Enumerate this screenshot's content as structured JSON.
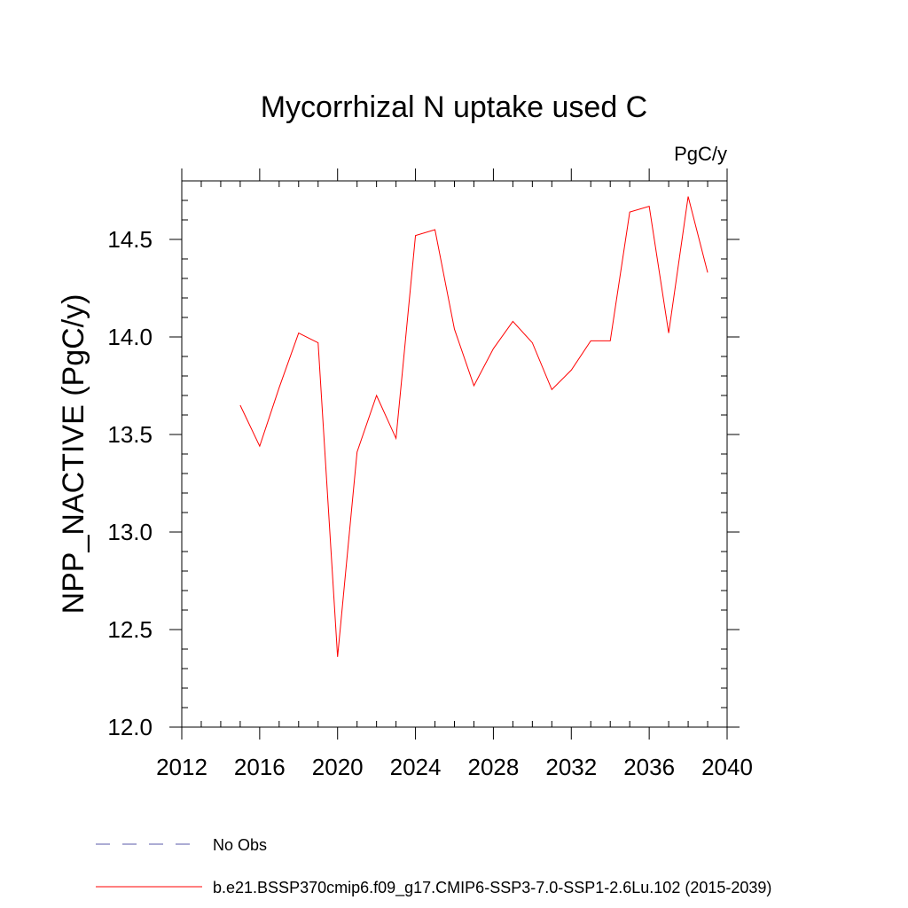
{
  "chart_data": {
    "type": "line",
    "title": "Mycorrhizal N uptake used C",
    "units_label": "PgC/y",
    "ylabel": "NPP_NACTIVE  (PgC/y)",
    "xlabel": "",
    "xlim": [
      2012,
      2040
    ],
    "ylim": [
      12.0,
      14.8
    ],
    "x_ticks": [
      2012,
      2016,
      2020,
      2024,
      2028,
      2032,
      2036,
      2040
    ],
    "y_ticks": [
      12.0,
      12.5,
      13.0,
      13.5,
      14.0,
      14.5
    ],
    "y_tick_labels": [
      "12.0",
      "12.5",
      "13.0",
      "13.5",
      "14.0",
      "14.5"
    ],
    "grid": false,
    "legend_placement": "bottom",
    "series": [
      {
        "name": "b.e21.BSSP370cmip6.f09_g17.CMIP6-SSP3-7.0-SSP1-2.6Lu.102 (2015-2039)",
        "color": "#ff0000",
        "style": "solid",
        "x": [
          2015,
          2016,
          2017,
          2018,
          2019,
          2020,
          2021,
          2022,
          2023,
          2024,
          2025,
          2026,
          2027,
          2028,
          2029,
          2030,
          2031,
          2032,
          2033,
          2034,
          2035,
          2036,
          2037,
          2038,
          2039
        ],
        "y": [
          13.65,
          13.44,
          13.74,
          14.02,
          13.97,
          12.36,
          13.41,
          13.7,
          13.48,
          14.52,
          14.55,
          14.04,
          13.75,
          13.94,
          14.08,
          13.97,
          13.73,
          13.83,
          13.98,
          13.98,
          14.64,
          14.67,
          14.02,
          14.72,
          14.33
        ]
      }
    ],
    "legend": [
      {
        "label": "No Obs",
        "color": "#5a5aa8",
        "style": "dashed"
      },
      {
        "label": "b.e21.BSSP370cmip6.f09_g17.CMIP6-SSP3-7.0-SSP1-2.6Lu.102 (2015-2039)",
        "color": "#ff0000",
        "style": "solid"
      }
    ]
  }
}
